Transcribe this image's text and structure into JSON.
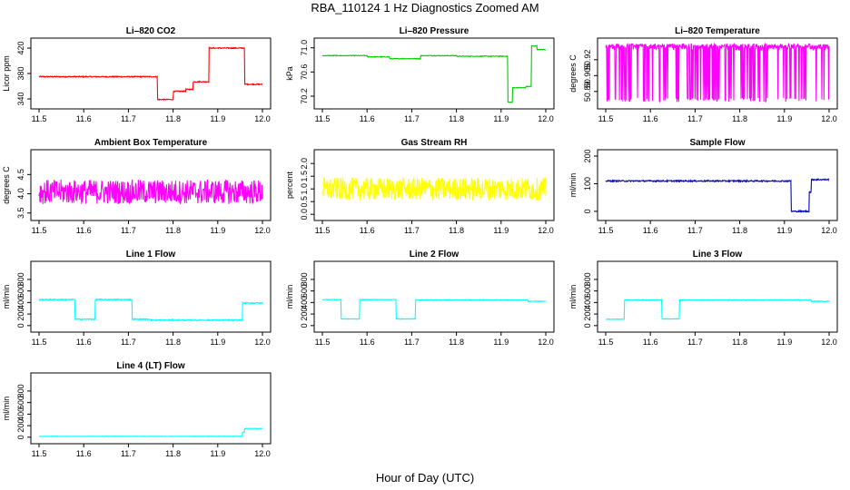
{
  "figure": {
    "title": "RBA_110124  1 Hz Diagnostics Zoomed AM",
    "xlabel": "Hour of Day (UTC)"
  },
  "chart_data": [
    {
      "type": "line",
      "title": "Li–820 CO2",
      "ylabel": "Licor ppm",
      "color": "#ff0000",
      "xlim": [
        11.5,
        12.0
      ],
      "ylim": [
        330,
        430
      ],
      "xticks": [
        11.5,
        11.6,
        11.7,
        11.8,
        11.9,
        12.0
      ],
      "yticks": [
        340,
        380,
        420
      ],
      "xtick_labels": [
        "11.5",
        "11.6",
        "11.7",
        "11.8",
        "11.9",
        "12.0"
      ],
      "ytick_labels": [
        "340",
        "380",
        "420"
      ],
      "noise": 0.8,
      "segments": [
        [
          11.5,
          11.765,
          375
        ],
        [
          11.765,
          11.8,
          339
        ],
        [
          11.8,
          11.828,
          352
        ],
        [
          11.828,
          11.845,
          355
        ],
        [
          11.845,
          11.88,
          367
        ],
        [
          11.88,
          11.96,
          420
        ],
        [
          11.96,
          12.0,
          363
        ]
      ]
    },
    {
      "type": "line",
      "title": "Li–820 Pressure",
      "ylabel": "kPa",
      "color": "#00cc00",
      "xlim": [
        11.5,
        12.0
      ],
      "ylim": [
        70.05,
        71.1
      ],
      "xticks": [
        11.5,
        11.6,
        11.7,
        11.8,
        11.9,
        12.0
      ],
      "yticks": [
        70.2,
        70.6,
        71.0
      ],
      "xtick_labels": [
        "11.5",
        "11.6",
        "11.7",
        "11.8",
        "11.9",
        "12.0"
      ],
      "ytick_labels": [
        "70.2",
        "70.6",
        "71.0"
      ],
      "noise": 0.006,
      "segments": [
        [
          11.5,
          11.6,
          70.87
        ],
        [
          11.6,
          11.65,
          70.85
        ],
        [
          11.65,
          11.72,
          70.82
        ],
        [
          11.72,
          11.8,
          70.87
        ],
        [
          11.8,
          11.915,
          70.86
        ],
        [
          11.915,
          11.925,
          70.1
        ],
        [
          11.925,
          11.955,
          70.34
        ],
        [
          11.955,
          11.968,
          70.36
        ],
        [
          11.968,
          11.98,
          71.03
        ],
        [
          11.98,
          12.0,
          70.97
        ]
      ]
    },
    {
      "type": "line",
      "title": "Li–820 Temperature",
      "ylabel": "degrees C",
      "color": "#ff00ff",
      "xlim": [
        11.5,
        12.0
      ],
      "ylim": [
        50.877,
        50.937
      ],
      "xticks": [
        11.5,
        11.6,
        11.7,
        11.8,
        11.9,
        12.0
      ],
      "yticks": [
        50.89,
        50.905,
        50.92
      ],
      "xtick_labels": [
        "11.5",
        "11.6",
        "11.7",
        "11.8",
        "11.9",
        "12.0"
      ],
      "ytick_labels": [
        "50.89",
        "50.905",
        "50.92"
      ],
      "flicker": [
        50.88,
        50.935
      ],
      "segments": [
        [
          11.5,
          12.0,
          50.93
        ]
      ]
    },
    {
      "type": "line",
      "title": "Ambient Box Temperature",
      "ylabel": "degrees C",
      "color": "#ff00ff",
      "xlim": [
        11.5,
        12.0
      ],
      "ylim": [
        3.4,
        5.05
      ],
      "xticks": [
        11.5,
        11.6,
        11.7,
        11.8,
        11.9,
        12.0
      ],
      "yticks": [
        3.5,
        4.0,
        4.5
      ],
      "xtick_labels": [
        "11.5",
        "11.6",
        "11.7",
        "11.8",
        "11.9",
        "12.0"
      ],
      "ytick_labels": [
        "3.5",
        "4.0",
        "4.5"
      ],
      "noise": 0.32,
      "segments": [
        [
          11.5,
          12.0,
          4.05
        ]
      ]
    },
    {
      "type": "line",
      "title": "Gas Stream RH",
      "ylabel": "percent",
      "color": "#ffff00",
      "xlim": [
        11.5,
        12.0
      ],
      "ylim": [
        -0.1,
        2.4
      ],
      "xticks": [
        11.5,
        11.6,
        11.7,
        11.8,
        11.9,
        12.0
      ],
      "yticks": [
        0.0,
        0.5,
        1.0,
        1.5,
        2.0
      ],
      "xtick_labels": [
        "11.5",
        "11.6",
        "11.7",
        "11.8",
        "11.9",
        "12.0"
      ],
      "ytick_labels": [
        "0.0",
        "0.5",
        "1.0",
        "1.5",
        "2.0"
      ],
      "noise": 0.45,
      "segments": [
        [
          11.5,
          12.0,
          1.0
        ]
      ]
    },
    {
      "type": "line",
      "title": "Sample Flow",
      "ylabel": "ml/min",
      "color": "#0000cc",
      "xlim": [
        11.5,
        12.0
      ],
      "ylim": [
        -20,
        210
      ],
      "xticks": [
        11.5,
        11.6,
        11.7,
        11.8,
        11.9,
        12.0
      ],
      "yticks": [
        0,
        100,
        200
      ],
      "xtick_labels": [
        "11.5",
        "11.6",
        "11.7",
        "11.8",
        "11.9",
        "12.0"
      ],
      "ytick_labels": [
        "0",
        "100",
        "200"
      ],
      "noise": 2.5,
      "segments": [
        [
          11.5,
          11.915,
          110
        ],
        [
          11.915,
          11.955,
          0
        ],
        [
          11.955,
          11.96,
          70
        ],
        [
          11.96,
          12.0,
          115
        ]
      ]
    },
    {
      "type": "line",
      "title": "Line 1 Flow",
      "ylabel": "ml/min",
      "color": "#00ffff",
      "xlim": [
        11.5,
        12.0
      ],
      "ylim": [
        -50,
        1050
      ],
      "xticks": [
        11.5,
        11.6,
        11.7,
        11.8,
        11.9,
        12.0
      ],
      "yticks": [
        0,
        200,
        400,
        600,
        800
      ],
      "xtick_labels": [
        "11.5",
        "11.6",
        "11.7",
        "11.8",
        "11.9",
        "12.0"
      ],
      "ytick_labels": [
        "0",
        "200",
        "400",
        "600",
        "800"
      ],
      "noise": 10,
      "segments": [
        [
          11.5,
          11.58,
          450
        ],
        [
          11.58,
          11.625,
          110
        ],
        [
          11.625,
          11.708,
          450
        ],
        [
          11.708,
          11.75,
          110
        ],
        [
          11.75,
          11.955,
          95
        ],
        [
          11.955,
          12.0,
          390
        ]
      ]
    },
    {
      "type": "line",
      "title": "Line 2 Flow",
      "ylabel": "ml/min",
      "color": "#00ffff",
      "xlim": [
        11.5,
        12.0
      ],
      "ylim": [
        -50,
        1050
      ],
      "xticks": [
        11.5,
        11.6,
        11.7,
        11.8,
        11.9,
        12.0
      ],
      "yticks": [
        0,
        200,
        400,
        600,
        800
      ],
      "xtick_labels": [
        "11.5",
        "11.6",
        "11.7",
        "11.8",
        "11.9",
        "12.0"
      ],
      "ytick_labels": [
        "0",
        "200",
        "400",
        "600",
        "800"
      ],
      "noise": 5,
      "segments": [
        [
          11.5,
          11.542,
          450
        ],
        [
          11.542,
          11.583,
          115
        ],
        [
          11.583,
          11.665,
          450
        ],
        [
          11.665,
          11.708,
          115
        ],
        [
          11.708,
          11.96,
          445
        ],
        [
          11.96,
          12.0,
          420
        ]
      ]
    },
    {
      "type": "line",
      "title": "Line 3 Flow",
      "ylabel": "ml/min",
      "color": "#00ffff",
      "xlim": [
        11.5,
        12.0
      ],
      "ylim": [
        -50,
        1050
      ],
      "xticks": [
        11.5,
        11.6,
        11.7,
        11.8,
        11.9,
        12.0
      ],
      "yticks": [
        0,
        200,
        400,
        600,
        800
      ],
      "xtick_labels": [
        "11.5",
        "11.6",
        "11.7",
        "11.8",
        "11.9",
        "12.0"
      ],
      "ytick_labels": [
        "0",
        "200",
        "400",
        "600",
        "800"
      ],
      "noise": 5,
      "segments": [
        [
          11.5,
          11.542,
          110
        ],
        [
          11.542,
          11.625,
          445
        ],
        [
          11.625,
          11.665,
          115
        ],
        [
          11.665,
          11.96,
          445
        ],
        [
          11.96,
          12.0,
          420
        ]
      ]
    },
    {
      "type": "line",
      "title": "Line 4 (LT) Flow",
      "ylabel": "ml/min",
      "color": "#00ffff",
      "xlim": [
        11.5,
        12.0
      ],
      "ylim": [
        -50,
        1050
      ],
      "xticks": [
        11.5,
        11.6,
        11.7,
        11.8,
        11.9,
        12.0
      ],
      "yticks": [
        0,
        200,
        400,
        600,
        800
      ],
      "xtick_labels": [
        "11.5",
        "11.6",
        "11.7",
        "11.8",
        "11.9",
        "12.0"
      ],
      "ytick_labels": [
        "0",
        "200",
        "400",
        "600",
        "800"
      ],
      "noise": 3,
      "segments": [
        [
          11.5,
          11.955,
          15
        ],
        [
          11.955,
          11.96,
          90
        ],
        [
          11.96,
          12.0,
          150
        ]
      ]
    }
  ]
}
